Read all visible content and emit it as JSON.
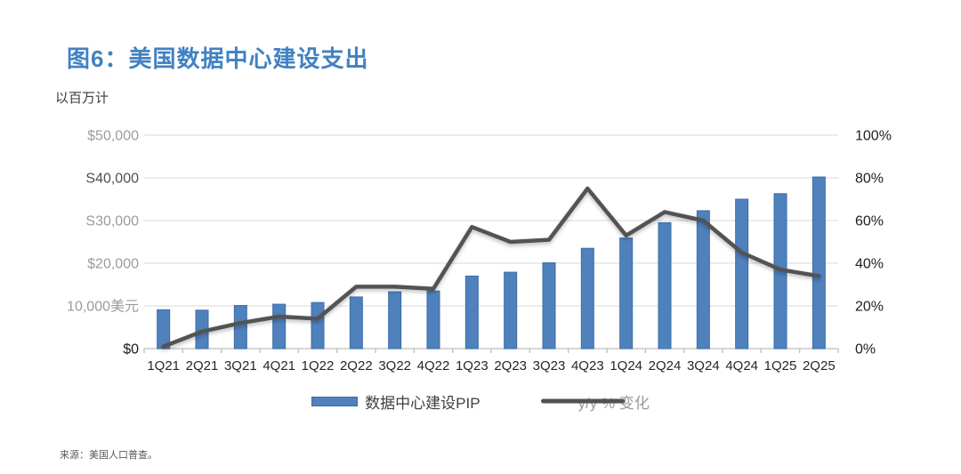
{
  "page": {
    "title": "图6：美国数据中心建设支出",
    "subtitle": "以百万计",
    "source": "来源：美国人口普查。"
  },
  "legend": {
    "bar_label": "数据中心建设PIP",
    "line_label": "y/y % 变化"
  },
  "colors": {
    "title": "#4181c3",
    "bar": "#4f81bd",
    "bar_border": "#3a6ea5",
    "line": "#525254",
    "grid": "#d9d9d9",
    "axis": "#bdbdbd",
    "x_label": "#262626",
    "right_label": "#1f1f1f"
  },
  "chart_data": {
    "type": "bar+line",
    "title": "图6：美国数据中心建设支出",
    "subtitle_units": "以百万计",
    "categories": [
      "1Q21",
      "2Q21",
      "3Q21",
      "4Q21",
      "1Q22",
      "2Q22",
      "3Q22",
      "4Q22",
      "1Q23",
      "2Q23",
      "3Q23",
      "4Q23",
      "1Q24",
      "2Q24",
      "3Q24",
      "4Q24",
      "1Q25",
      "2Q25"
    ],
    "series": [
      {
        "name": "数据中心建设PIP",
        "type": "bar",
        "axis": "left",
        "values": [
          9100,
          9000,
          10100,
          10400,
          10800,
          12100,
          13300,
          13500,
          17000,
          17900,
          20100,
          23500,
          25900,
          29500,
          32300,
          35000,
          36300,
          40200
        ]
      },
      {
        "name": "y/y % 变化",
        "type": "line",
        "axis": "right",
        "values": [
          1,
          8,
          12,
          15,
          14,
          29,
          29,
          28,
          57,
          50,
          51,
          75,
          53,
          64,
          60,
          45,
          37,
          34
        ]
      }
    ],
    "left_axis": {
      "range": [
        0,
        50000
      ],
      "ticks": [
        "$0",
        "10,000美元",
        "$20,000",
        "S30,000",
        "S40,000",
        "$50,000"
      ],
      "tick_colors": [
        "#1a1a1a",
        "#9b9b9b",
        "#9b9b9b",
        "#9b9b9b",
        "#4f4f4f",
        "#9b9b9b"
      ]
    },
    "right_axis": {
      "range": [
        0,
        100
      ],
      "ticks": [
        "0%",
        "20%",
        "40%",
        "60%",
        "80%",
        "100%"
      ]
    },
    "grid": true,
    "legend_position": "bottom"
  }
}
